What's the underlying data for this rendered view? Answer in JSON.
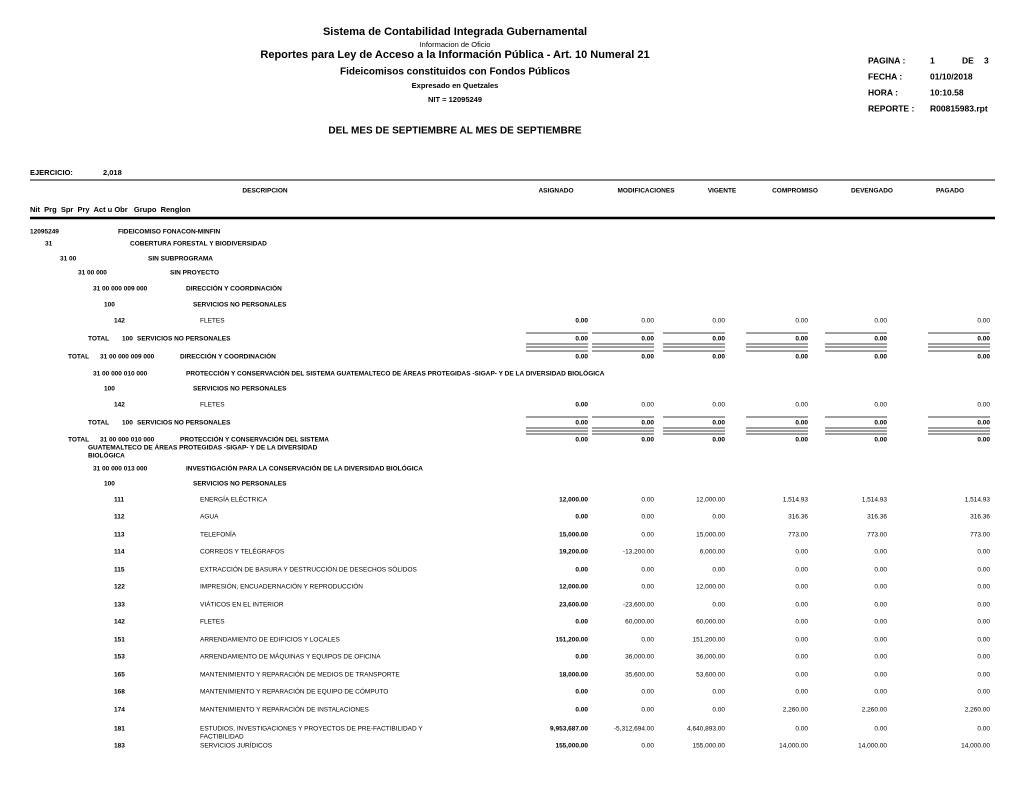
{
  "header": {
    "title": "Sistema de Contabilidad Integrada Gubernamental",
    "note": "Informacion de Oficio",
    "subtitle": "Reportes para Ley de Acceso a la Información Pública - Art. 10 Numeral 21",
    "subtitle2": "Fideicomisos constituidos con Fondos Públicos",
    "currency": "Expresado en Quetzales",
    "nit": "NIT = 12095249",
    "period": "DEL MES DE SEPTIEMBRE AL MES DE SEPTIEMBRE"
  },
  "info": {
    "page_label": "PAGINA :",
    "page": "1",
    "of_label": "DE",
    "pages": "3",
    "date_label": "FECHA :",
    "date": "01/10/2018",
    "time_label": "HORA :",
    "time": "10:10.58",
    "report_label": "REPORTE :",
    "report": "R00815983.rpt"
  },
  "exercise": {
    "label": "EJERCICIO:",
    "value": "2,018"
  },
  "columns": {
    "description": "DESCRIPCION",
    "values": [
      "ASIGNADO",
      "MODIFICACIONES",
      "VIGENTE",
      "COMPROMISO",
      "DEVENGADO",
      "PAGADO"
    ],
    "keys": "Nit  Prg  Spr  Pry  Act u Obr   Grupo  Renglon"
  },
  "rows": [
    {
      "code": "12095249",
      "desc": "FIDEICOMISO FONACON-MINFIN"
    },
    {
      "code": "31",
      "desc": "COBERTURA FORESTAL Y BIODIVERSIDAD"
    },
    {
      "code": "31 00",
      "desc": "SIN SUBPROGRAMA"
    },
    {
      "code": "31 00 000",
      "desc": "SIN PROYECTO"
    },
    {
      "code": "31 00 000 009 000",
      "desc": "DIRECCIÓN Y COORDINACIÓN"
    },
    {
      "code": "100",
      "desc": "SERVICIOS NO PERSONALES"
    },
    {
      "code": "142",
      "desc": "FLETES",
      "values": [
        "0.00",
        "0.00",
        "0.00",
        "0.00",
        "0.00",
        "0.00"
      ]
    },
    {
      "total": "TOTAL",
      "code": "100",
      "desc": "SERVICIOS NO PERSONALES",
      "values": [
        "0.00",
        "0.00",
        "0.00",
        "0.00",
        "0.00",
        "0.00"
      ]
    },
    {
      "total": "TOTAL",
      "code": "31 00 000 009 000",
      "desc": "DIRECCIÓN Y COORDINACIÓN",
      "values": [
        "0.00",
        "0.00",
        "0.00",
        "0.00",
        "0.00",
        "0.00"
      ]
    },
    {
      "code": "31 00 000 010 000",
      "desc": "PROTECCIÓN Y CONSERVACIÓN DEL SISTEMA GUATEMALTECO DE ÁREAS PROTEGIDAS -SIGAP- Y DE LA DIVERSIDAD BIOLÓGICA"
    },
    {
      "code": "100",
      "desc": "SERVICIOS NO PERSONALES"
    },
    {
      "code": "142",
      "desc": "FLETES",
      "values": [
        "0.00",
        "0.00",
        "0.00",
        "0.00",
        "0.00",
        "0.00"
      ]
    },
    {
      "total": "TOTAL",
      "code": "100",
      "desc": "SERVICIOS NO PERSONALES",
      "values": [
        "0.00",
        "0.00",
        "0.00",
        "0.00",
        "0.00",
        "0.00"
      ]
    },
    {
      "total": "TOTAL",
      "code": "31 00 000 010 000",
      "desc": [
        "PROTECCIÓN Y CONSERVACIÓN DEL SISTEMA",
        "GUATEMALTECO DE ÁREAS PROTEGIDAS -SIGAP- Y DE LA DIVERSIDAD",
        "BIOLÓGICA"
      ],
      "values": [
        "0.00",
        "0.00",
        "0.00",
        "0.00",
        "0.00",
        "0.00"
      ]
    },
    {
      "code": "31 00 000 013 000",
      "desc": "INVESTIGACIÓN PARA LA CONSERVACIÓN DE LA DIVERSIDAD BIOLÓGICA"
    },
    {
      "code": "100",
      "desc": "SERVICIOS NO PERSONALES"
    },
    {
      "code": "111",
      "desc": "ENERGÍA ELÉCTRICA",
      "values": [
        "12,000.00",
        "0.00",
        "12,000.00",
        "1,514.93",
        "1,514.93",
        "1,514.93"
      ]
    },
    {
      "code": "112",
      "desc": "AGUA",
      "values": [
        "0.00",
        "0.00",
        "0.00",
        "316.36",
        "316.36",
        "316.36"
      ]
    },
    {
      "code": "113",
      "desc": "TELEFONÍA",
      "values": [
        "15,000.00",
        "0.00",
        "15,000.00",
        "773.00",
        "773.00",
        "773.00"
      ]
    },
    {
      "code": "114",
      "desc": "CORREOS Y TELÉGRAFOS",
      "values": [
        "19,200.00",
        "-13,200.00",
        "6,000.00",
        "0.00",
        "0.00",
        "0.00"
      ]
    },
    {
      "code": "115",
      "desc": "EXTRACCIÓN DE BASURA Y DESTRUCCIÓN DE DESECHOS SÓLIDOS",
      "values": [
        "0.00",
        "0.00",
        "0.00",
        "0.00",
        "0.00",
        "0.00"
      ]
    },
    {
      "code": "122",
      "desc": "IMPRESIÓN, ENCUADERNACIÓN Y REPRODUCCIÓN",
      "values": [
        "12,000.00",
        "0.00",
        "12,000.00",
        "0.00",
        "0.00",
        "0.00"
      ]
    },
    {
      "code": "133",
      "desc": "VIÁTICOS EN EL INTERIOR",
      "values": [
        "23,600.00",
        "-23,600.00",
        "0.00",
        "0.00",
        "0.00",
        "0.00"
      ]
    },
    {
      "code": "142",
      "desc": "FLETES",
      "values": [
        "0.00",
        "60,000.00",
        "60,000.00",
        "0.00",
        "0.00",
        "0.00"
      ]
    },
    {
      "code": "151",
      "desc": "ARRENDAMIENTO DE EDIFICIOS Y LOCALES",
      "values": [
        "151,200.00",
        "0.00",
        "151,200.00",
        "0.00",
        "0.00",
        "0.00"
      ]
    },
    {
      "code": "153",
      "desc": "ARRENDAMIENTO DE MÁQUINAS Y EQUIPOS DE OFICINA",
      "values": [
        "0.00",
        "36,000.00",
        "36,000.00",
        "0.00",
        "0.00",
        "0.00"
      ]
    },
    {
      "code": "165",
      "desc": "MANTENIMIENTO Y REPARACIÓN DE MEDIOS DE TRANSPORTE",
      "values": [
        "18,000.00",
        "35,600.00",
        "53,600.00",
        "0.00",
        "0.00",
        "0.00"
      ]
    },
    {
      "code": "168",
      "desc": "MANTENIMIENTO Y REPARACIÓN DE EQUIPO DE CÓMPUTO",
      "values": [
        "0.00",
        "0.00",
        "0.00",
        "0.00",
        "0.00",
        "0.00"
      ]
    },
    {
      "code": "174",
      "desc": "MANTENIMIENTO Y REPARACIÓN DE INSTALACIONES",
      "values": [
        "0.00",
        "0.00",
        "0.00",
        "2,260.00",
        "2,260.00",
        "2,260.00"
      ]
    },
    {
      "code": "181",
      "desc": [
        "ESTUDIOS, INVESTIGACIONES Y PROYECTOS DE PRE-FACTIBILIDAD Y",
        "FACTIBILIDAD"
      ],
      "values": [
        "9,953,687.00",
        "-5,312,694.00",
        "4,640,893.00",
        "0.00",
        "0.00",
        "0.00"
      ]
    },
    {
      "code": "183",
      "desc": "SERVICIOS JURÍDICOS",
      "values": [
        "155,000.00",
        "0.00",
        "155,000.00",
        "14,000.00",
        "14,000.00",
        "14,000.00"
      ]
    }
  ]
}
